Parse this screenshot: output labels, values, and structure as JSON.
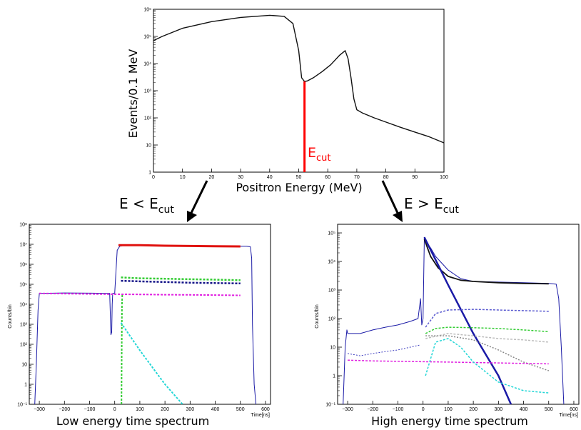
{
  "colors": {
    "frame": "#000000",
    "cut_line": "#ff0000",
    "blue": "#1a1aa6",
    "red": "#e0120f",
    "green": "#33cc33",
    "navy": "#141488",
    "magenta": "#e01ee0",
    "cyan": "#22d6d6",
    "gray": "#888888",
    "lightgray": "#bdbdbd"
  },
  "chart_data": [
    {
      "type": "line",
      "ylabel": "Events/0.1 MeV",
      "xlabel": "Positron Energy (MeV)",
      "x_ticks": [
        "0",
        "10",
        "20",
        "30",
        "40",
        "50",
        "60",
        "70",
        "80",
        "90",
        "100"
      ],
      "y_ticks": [
        "1",
        "10",
        "10²",
        "10³",
        "10⁴",
        "10⁵",
        "10⁶"
      ],
      "xlim": [
        0,
        100
      ],
      "ylim": [
        1,
        1000000
      ],
      "y_scale": "log",
      "series": [
        {
          "x": [
            0,
            3,
            10,
            20,
            30,
            40,
            45,
            48,
            50,
            51,
            52,
            53,
            55,
            58,
            61,
            64,
            66,
            67,
            68,
            69,
            70,
            72,
            76,
            80,
            85,
            90,
            95,
            100
          ],
          "y": [
            70000,
            100000,
            200000,
            350000,
            500000,
            600000,
            550000,
            300000,
            30000,
            3000,
            2200,
            2300,
            3000,
            5000,
            9000,
            20000,
            30000,
            15000,
            3000,
            500,
            200,
            150,
            100,
            70,
            45,
            30,
            20,
            12
          ]
        }
      ],
      "cut": {
        "x": 52,
        "label": "E",
        "subscript": "cut"
      }
    },
    {
      "type": "line",
      "title": "Low energy time spectrum",
      "ylabel": "Counts/bin",
      "xlabel": "Time[ns]",
      "x_ticks": [
        "−300",
        "−200",
        "−100",
        "0",
        "100",
        "200",
        "300",
        "400",
        "500",
        "600"
      ],
      "y_ticks": [
        "10⁻¹",
        "1",
        "10",
        "10²",
        "10³",
        "10⁴",
        "10⁵",
        "10⁶",
        "10⁷",
        "10⁸"
      ],
      "xlim": [
        -340,
        620
      ],
      "ylim": [
        0.1,
        100000000
      ],
      "y_scale": "log",
      "series": [
        {
          "x": [
            -318,
            -312,
            -305,
            -300,
            -200,
            -100,
            -20,
            -18,
            -15,
            -12,
            -10,
            -8,
            0,
            10,
            20,
            30,
            50,
            100,
            300,
            500,
            525,
            540,
            545,
            548,
            555,
            562
          ],
          "y": [
            0.1,
            10,
            5000,
            35000,
            37000,
            36000,
            35000,
            5000,
            300,
            400,
            10000,
            35000,
            36000,
            5000000,
            8000000,
            8500000,
            9000000,
            9000000,
            8500000,
            8000000,
            8000000,
            7500000,
            2000000,
            1000,
            1,
            0.1
          ]
        },
        {
          "x": [
            15,
            100,
            200,
            300,
            400,
            500
          ],
          "y": [
            9000000,
            9000000,
            8500000,
            8200000,
            8000000,
            7800000
          ]
        },
        {
          "x": [
            25,
            100,
            200,
            300,
            400,
            500
          ],
          "y": [
            220000,
            200000,
            190000,
            180000,
            170000,
            160000
          ]
        },
        {
          "x": [
            25,
            100,
            200,
            300,
            400,
            500
          ],
          "y": [
            150000,
            140000,
            130000,
            120000,
            115000,
            110000
          ]
        },
        {
          "x": [
            -300,
            -200,
            -100,
            0,
            100,
            200,
            300,
            400,
            500
          ],
          "y": [
            35000,
            34000,
            33000,
            32000,
            31000,
            30000,
            29500,
            29000,
            28000
          ]
        },
        {
          "x": [
            27,
            28,
            29,
            30,
            31
          ],
          "y": [
            0.1,
            100,
            10000,
            30000,
            30000
          ]
        },
        {
          "x": [
            25,
            100,
            200,
            270
          ],
          "y": [
            1200,
            50,
            1,
            0.1
          ]
        }
      ]
    },
    {
      "type": "line",
      "title": "High energy time spectrum",
      "ylabel": "Counts/bin",
      "xlabel": "Time[ns]",
      "x_ticks": [
        "−300",
        "−200",
        "−100",
        "0",
        "100",
        "200",
        "300",
        "400",
        "500",
        "600"
      ],
      "y_ticks": [
        "10⁻¹",
        "1",
        "10",
        "10²",
        "10³",
        "10⁴",
        "10⁵"
      ],
      "xlim": [
        -340,
        620
      ],
      "ylim": [
        0.1,
        200000
      ],
      "y_scale": "log",
      "series": [
        {
          "x": [
            -318,
            -310,
            -303,
            -300,
            -250,
            -200,
            -150,
            -100,
            -50,
            -20,
            -10,
            -5,
            0,
            5,
            10,
            30,
            50,
            100,
            150,
            200,
            300,
            400,
            500,
            530,
            540,
            550,
            560
          ],
          "y": [
            0.1,
            10,
            40,
            30,
            30,
            40,
            50,
            60,
            80,
            100,
            500,
            60,
            100,
            70000,
            50000,
            30000,
            15000,
            5000,
            2500,
            2000,
            1900,
            1800,
            1700,
            1600,
            500,
            10,
            0.1
          ]
        },
        {
          "x": [
            5,
            30,
            60,
            100,
            150,
            200,
            300,
            400,
            500
          ],
          "y": [
            60000,
            15000,
            6000,
            3000,
            2200,
            2000,
            1800,
            1700,
            1650
          ]
        },
        {
          "x": [
            5,
            100,
            200,
            300,
            350
          ],
          "y": [
            70000,
            1500,
            30,
            1,
            0.1
          ]
        },
        {
          "x": [
            10,
            50,
            100,
            200,
            300,
            400,
            500
          ],
          "y": [
            50,
            150,
            200,
            210,
            200,
            190,
            180
          ]
        },
        {
          "x": [
            10,
            50,
            100,
            200,
            300,
            400,
            500
          ],
          "y": [
            30,
            45,
            50,
            48,
            45,
            40,
            35
          ]
        },
        {
          "x": [
            10,
            100,
            200,
            300,
            400,
            500
          ],
          "y": [
            20,
            30,
            25,
            20,
            18,
            15
          ]
        },
        {
          "x": [
            10,
            100,
            200,
            300,
            400,
            500
          ],
          "y": [
            25,
            25,
            18,
            8,
            3,
            1.5
          ]
        },
        {
          "x": [
            -300,
            -200,
            -100,
            0,
            100,
            200,
            300,
            400,
            500
          ],
          "y": [
            3.5,
            3.3,
            3.2,
            3.1,
            3.0,
            2.9,
            2.8,
            2.7,
            2.6
          ]
        },
        {
          "x": [
            10,
            50,
            100,
            150,
            200,
            300,
            400,
            500
          ],
          "y": [
            1,
            15,
            20,
            10,
            3,
            0.6,
            0.3,
            0.25
          ]
        },
        {
          "x": [
            -300,
            -250,
            -200,
            -150,
            -100,
            -50,
            -10
          ],
          "y": [
            6,
            5,
            6,
            7,
            8,
            10,
            12
          ]
        }
      ]
    }
  ],
  "arrows": {
    "left": {
      "label": "E < E",
      "subscript": "cut"
    },
    "right": {
      "label": "E > E",
      "subscript": "cut"
    }
  }
}
